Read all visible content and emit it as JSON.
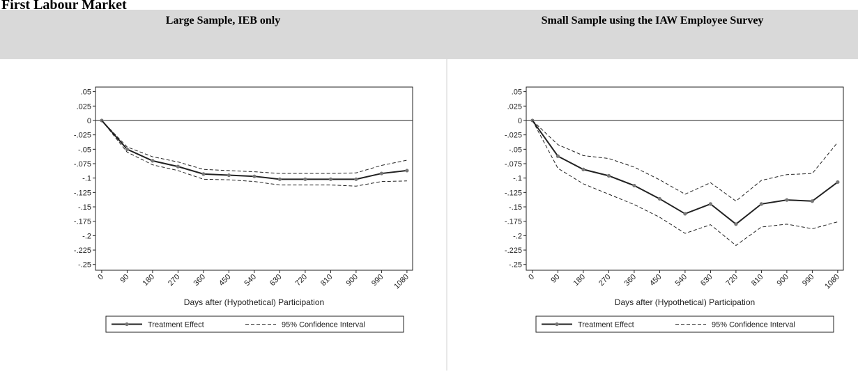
{
  "page_title": "First Labour Market",
  "chart_data": [
    {
      "type": "line",
      "title": "Large Sample, IEB only",
      "x_label": "Days after (Hypothetical) Participation",
      "x": [
        0,
        90,
        180,
        270,
        360,
        450,
        540,
        630,
        720,
        810,
        900,
        990,
        1080
      ],
      "xlim": [
        -22,
        1100
      ],
      "xticks": [
        0,
        90,
        180,
        270,
        360,
        450,
        540,
        630,
        720,
        810,
        900,
        990,
        1080
      ],
      "ylim": [
        -0.26,
        0.058
      ],
      "yticks": [
        {
          "value": 0.05,
          "label": ".05"
        },
        {
          "value": 0.025,
          "label": ".025"
        },
        0,
        {
          "value": -0.025,
          "label": "-.025"
        },
        {
          "value": -0.05,
          "label": "-.05"
        },
        {
          "value": -0.075,
          "label": "-.075"
        },
        {
          "value": -0.1,
          "label": "-.1"
        },
        {
          "value": -0.125,
          "label": "-.125"
        },
        {
          "value": -0.15,
          "label": "-.15"
        },
        {
          "value": -0.175,
          "label": "-.175"
        },
        {
          "value": -0.2,
          "label": "-.2"
        },
        {
          "value": -0.225,
          "label": "-.225"
        },
        {
          "value": -0.25,
          "label": "-.25"
        }
      ],
      "series": [
        {
          "name": "Treatment Effect",
          "color": "#222222",
          "values": [
            0,
            -0.05,
            -0.07,
            -0.08,
            -0.093,
            -0.095,
            -0.097,
            -0.102,
            -0.102,
            -0.102,
            -0.102,
            -0.092,
            -0.087
          ]
        },
        {
          "name": "95% Confidence Interval",
          "color": "#222222",
          "values": [
            0,
            -0.046,
            -0.063,
            -0.072,
            -0.085,
            -0.087,
            -0.089,
            -0.092,
            -0.092,
            -0.092,
            -0.091,
            -0.078,
            -0.069
          ],
          "lower": [
            0,
            -0.055,
            -0.077,
            -0.087,
            -0.102,
            -0.103,
            -0.106,
            -0.112,
            -0.112,
            -0.112,
            -0.114,
            -0.106,
            -0.105
          ]
        }
      ]
    },
    {
      "type": "line",
      "title": "Small Sample using the IAW Employee Survey",
      "x_label": "Days after (Hypothetical) Participation",
      "x": [
        0,
        90,
        180,
        270,
        360,
        450,
        540,
        630,
        720,
        810,
        900,
        990,
        1080
      ],
      "xlim": [
        -22,
        1100
      ],
      "xticks": [
        0,
        90,
        180,
        270,
        360,
        450,
        540,
        630,
        720,
        810,
        900,
        990,
        1080
      ],
      "ylim": [
        -0.26,
        0.058
      ],
      "yticks": [
        {
          "value": 0.05,
          "label": ".05"
        },
        {
          "value": 0.025,
          "label": ".025"
        },
        0,
        {
          "value": -0.025,
          "label": "-.025"
        },
        {
          "value": -0.05,
          "label": "-.05"
        },
        {
          "value": -0.075,
          "label": "-.075"
        },
        {
          "value": -0.1,
          "label": "-.1"
        },
        {
          "value": -0.125,
          "label": "-.125"
        },
        {
          "value": -0.15,
          "label": "-.15"
        },
        {
          "value": -0.175,
          "label": "-.175"
        },
        {
          "value": -0.2,
          "label": "-.2"
        },
        {
          "value": -0.225,
          "label": "-.225"
        },
        {
          "value": -0.25,
          "label": "-.25"
        }
      ],
      "series": [
        {
          "name": "Treatment Effect",
          "color": "#222222",
          "values": [
            0,
            -0.062,
            -0.085,
            -0.096,
            -0.113,
            -0.136,
            -0.162,
            -0.145,
            -0.18,
            -0.145,
            -0.138,
            -0.14,
            -0.107
          ]
        },
        {
          "name": "95% Confidence Interval",
          "color": "#222222",
          "values": [
            0,
            -0.042,
            -0.061,
            -0.066,
            -0.081,
            -0.103,
            -0.128,
            -0.108,
            -0.14,
            -0.104,
            -0.094,
            -0.092,
            -0.038
          ],
          "lower": [
            0,
            -0.083,
            -0.11,
            -0.128,
            -0.146,
            -0.168,
            -0.196,
            -0.181,
            -0.217,
            -0.185,
            -0.18,
            -0.188,
            -0.176
          ]
        }
      ]
    }
  ]
}
